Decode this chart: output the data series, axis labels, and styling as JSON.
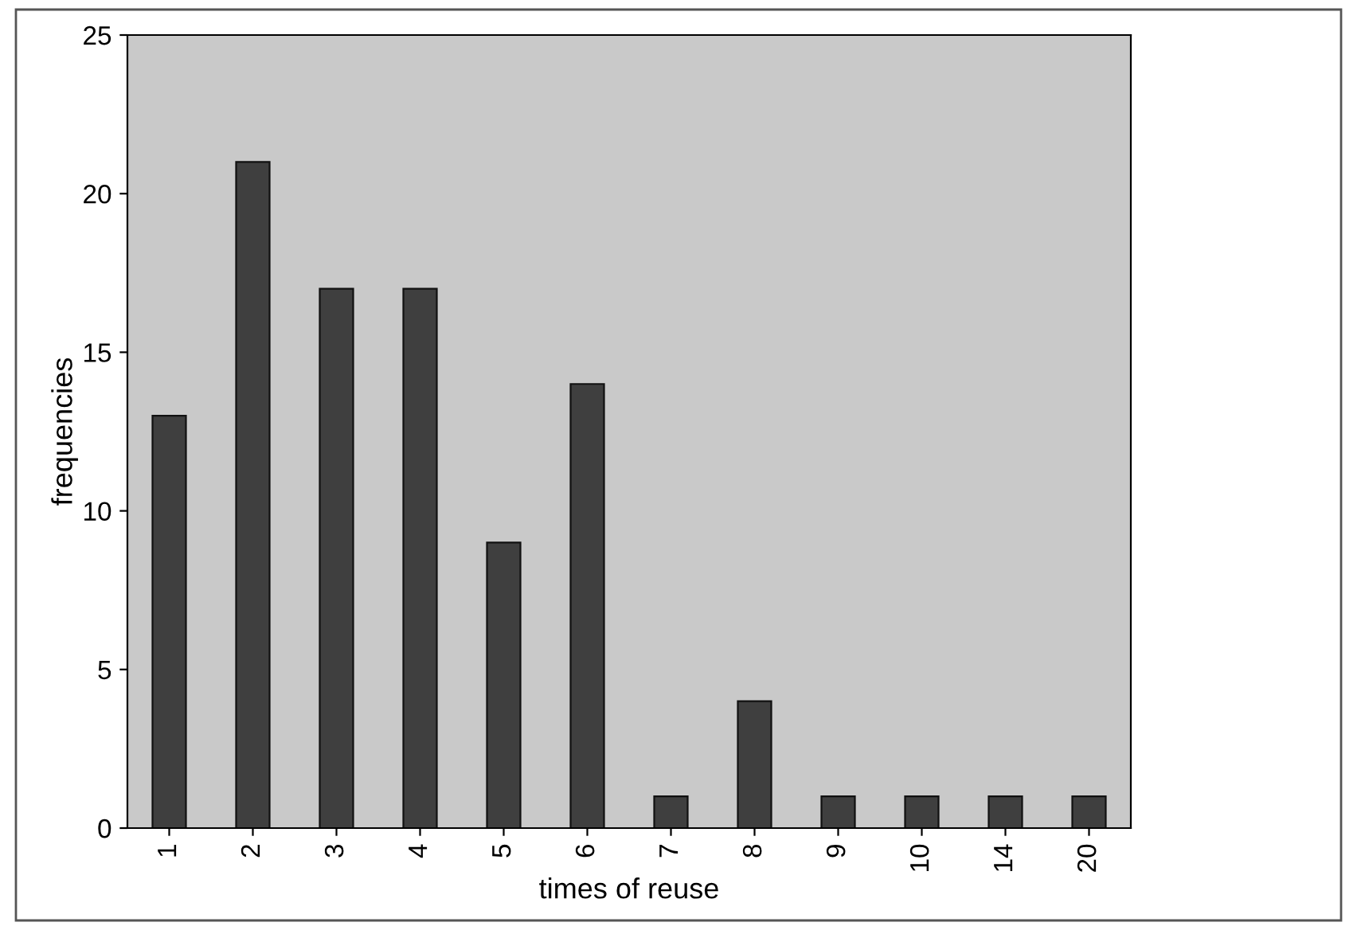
{
  "chart_data": {
    "type": "bar",
    "xlabel": "times of reuse",
    "ylabel": "frequencies",
    "categories": [
      "1",
      "2",
      "3",
      "4",
      "5",
      "6",
      "7",
      "8",
      "9",
      "10",
      "14",
      "20"
    ],
    "values": [
      13,
      21,
      17,
      17,
      9,
      14,
      1,
      4,
      1,
      1,
      1,
      1
    ],
    "color": "#3f3f3f",
    "ylim": [
      0,
      25
    ],
    "yticks": [
      0,
      5,
      10,
      15,
      20,
      25
    ],
    "grid": false,
    "legend": false
  }
}
